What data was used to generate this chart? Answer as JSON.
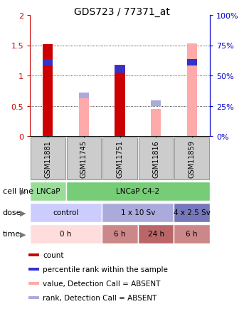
{
  "title": "GDS723 / 77371_at",
  "samples": [
    "GSM11881",
    "GSM11745",
    "GSM11751",
    "GSM11816",
    "GSM11859"
  ],
  "bar_values": [
    1.52,
    0.0,
    1.18,
    0.0,
    0.0
  ],
  "bar_absent_values": [
    0.0,
    0.62,
    0.0,
    0.45,
    1.53
  ],
  "percentile_values": [
    1.22,
    0.0,
    1.1,
    0.0,
    1.22
  ],
  "percentile_absent_values": [
    0.0,
    0.67,
    0.0,
    0.54,
    0.0
  ],
  "bar_color": "#cc0000",
  "bar_absent_color": "#ffaaaa",
  "percentile_color": "#3333cc",
  "percentile_absent_color": "#aaaadd",
  "ylim_left": [
    0,
    2.0
  ],
  "ylim_right": [
    0,
    100
  ],
  "yticks_left": [
    0,
    0.5,
    1.0,
    1.5,
    2.0
  ],
  "ytick_labels_left": [
    "0",
    "0.5",
    "1",
    "1.5",
    "2"
  ],
  "ytick_labels_right": [
    "0%",
    "25%",
    "50%",
    "75%",
    "100%"
  ],
  "cell_line_row": {
    "label": "cell line",
    "segments": [
      {
        "text": "LNCaP",
        "start": 0,
        "end": 1,
        "color": "#99dd99"
      },
      {
        "text": "LNCaP C4-2",
        "start": 1,
        "end": 5,
        "color": "#77cc77"
      }
    ]
  },
  "dose_row": {
    "label": "dose",
    "segments": [
      {
        "text": "control",
        "start": 0,
        "end": 2,
        "color": "#ccccff"
      },
      {
        "text": "1 x 10 Sv",
        "start": 2,
        "end": 4,
        "color": "#aaaadd"
      },
      {
        "text": "4 x 2.5 Sv",
        "start": 4,
        "end": 5,
        "color": "#7777bb"
      }
    ]
  },
  "time_row": {
    "label": "time",
    "segments": [
      {
        "text": "0 h",
        "start": 0,
        "end": 2,
        "color": "#ffdddd"
      },
      {
        "text": "6 h",
        "start": 2,
        "end": 3,
        "color": "#cc8888"
      },
      {
        "text": "24 h",
        "start": 3,
        "end": 4,
        "color": "#bb6666"
      },
      {
        "text": "6 h",
        "start": 4,
        "end": 5,
        "color": "#cc8888"
      }
    ]
  },
  "legend_items": [
    {
      "color": "#cc0000",
      "label": "count"
    },
    {
      "color": "#3333cc",
      "label": "percentile rank within the sample"
    },
    {
      "color": "#ffaaaa",
      "label": "value, Detection Call = ABSENT"
    },
    {
      "color": "#aaaadd",
      "label": "rank, Detection Call = ABSENT"
    }
  ],
  "left_axis_color": "#cc0000",
  "right_axis_color": "#0000cc",
  "bar_width": 0.28,
  "marker_size": 0.1,
  "n_samples": 5
}
